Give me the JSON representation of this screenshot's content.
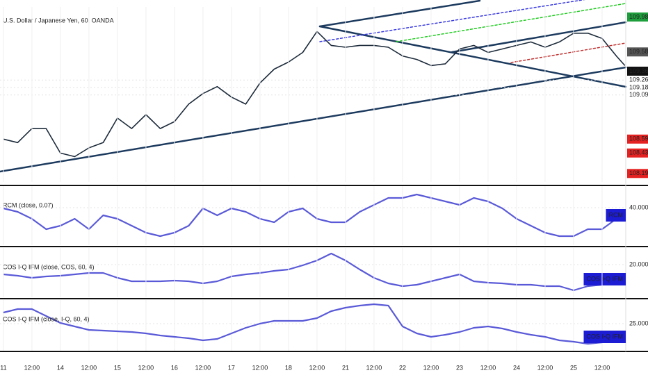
{
  "chart_data": [
    {
      "type": "line",
      "title": "U.S. Dollar / Japanese Yen, 60, OANDA",
      "color": "#1c2a3a",
      "x": [
        0,
        0.5,
        1,
        1.5,
        2,
        2.5,
        3,
        3.5,
        4,
        4.5,
        5,
        5.5,
        6,
        6.5,
        7,
        7.5,
        8,
        8.5,
        9,
        9.5,
        10,
        10.5,
        11,
        11.5,
        12,
        12.5,
        13,
        13.5,
        14,
        14.5,
        15,
        15.5,
        16,
        16.5,
        17,
        17.5,
        18,
        18.5,
        19,
        19.5,
        20,
        20.5,
        21,
        21.5,
        21.8
      ],
      "values": [
        108.59,
        108.55,
        108.71,
        108.71,
        108.43,
        108.39,
        108.49,
        108.55,
        108.83,
        108.71,
        108.87,
        108.71,
        108.79,
        108.99,
        109.11,
        109.19,
        109.07,
        108.99,
        109.23,
        109.39,
        109.47,
        109.58,
        109.82,
        109.66,
        109.64,
        109.66,
        109.66,
        109.64,
        109.54,
        109.5,
        109.43,
        109.45,
        109.62,
        109.66,
        109.58,
        109.62,
        109.66,
        109.7,
        109.64,
        109.7,
        109.8,
        109.8,
        109.74,
        109.54,
        109.43
      ],
      "xlim": [
        -0.12,
        21.83
      ],
      "ylim": [
        108.1,
        110.1
      ],
      "yticks": [
        109.265,
        109.18,
        109.094
      ],
      "price_markers": [
        {
          "value": 109.985,
          "color": "#1e9e3c"
        },
        {
          "value": 109.586,
          "color": "#555555"
        },
        {
          "value": 109.366,
          "color": "#111111"
        },
        {
          "value": 108.59,
          "color": "#e52222"
        },
        {
          "value": 108.431,
          "color": "#e52222"
        },
        {
          "value": 108.197,
          "color": "#e52222"
        }
      ],
      "grid": true
    },
    {
      "type": "line",
      "title": "RCM (close, 0.07)",
      "badge": "RCM",
      "color": "#5a5ad8",
      "x": [
        0,
        0.5,
        1,
        1.5,
        2,
        2.5,
        3,
        3.5,
        4,
        4.5,
        5,
        5.5,
        6,
        6.5,
        7,
        7.5,
        8,
        8.5,
        9,
        9.5,
        10,
        10.5,
        11,
        11.5,
        12,
        12.5,
        13,
        13.5,
        14,
        14.5,
        15,
        15.5,
        16,
        16.5,
        17,
        17.5,
        18,
        18.5,
        19,
        19.5,
        20,
        20.5,
        21,
        21.5,
        21.8
      ],
      "values": [
        39,
        34,
        24,
        9,
        14,
        24,
        9,
        29,
        24,
        14,
        4,
        -1,
        4,
        14,
        39,
        29,
        39,
        34,
        24,
        19,
        34,
        39,
        24,
        19,
        19,
        34,
        44,
        54,
        54,
        59,
        54,
        49,
        44,
        54,
        49,
        39,
        24,
        14,
        4,
        -1,
        -1,
        9,
        9,
        24,
        29
      ],
      "xlim": [
        -0.12,
        21.83
      ],
      "ylim": [
        -14,
        71
      ],
      "yticks": [
        {
          "value": 40,
          "label": "40.0000"
        }
      ]
    },
    {
      "type": "line",
      "title": "COS I-Q IFM (close, COS, 60, 4)",
      "badge": "COS I-Q IFM",
      "color": "#5a5ad8",
      "x": [
        0,
        0.5,
        1,
        1.5,
        2,
        2.5,
        3,
        3.5,
        4,
        4.5,
        5,
        5.5,
        6,
        6.5,
        7,
        7.5,
        8,
        8.5,
        9,
        9.5,
        10,
        10.5,
        11,
        11.5,
        12,
        12.5,
        13,
        13.5,
        14,
        14.5,
        15,
        15.5,
        16,
        16.5,
        17,
        17.5,
        18,
        18.5,
        19,
        19.5,
        20,
        20.5,
        21,
        21.5,
        21.8
      ],
      "values": [
        6,
        4,
        1,
        3,
        4,
        6,
        8,
        8,
        1,
        -4,
        -4,
        -4,
        -3,
        -4,
        -7,
        -4,
        3,
        6,
        8,
        11,
        13,
        19,
        26,
        36,
        26,
        13,
        1,
        -7,
        -11,
        -9,
        -4,
        1,
        6,
        -4,
        -6,
        -7,
        -9,
        -9,
        -11,
        -11,
        -17,
        -11,
        -9,
        -4,
        -1
      ],
      "xlim": [
        -0.12,
        21.83
      ],
      "ylim": [
        -27,
        44
      ],
      "yticks": [
        {
          "value": 20,
          "label": "20.0000"
        }
      ]
    },
    {
      "type": "line",
      "title": "COS I-Q IFM (close, I-Q, 60, 4)",
      "badge": "COS I-Q IFM",
      "color": "#5a5ad8",
      "x": [
        0,
        0.5,
        1,
        1.5,
        2,
        2.5,
        3,
        3.5,
        4,
        4.5,
        5,
        5.5,
        6,
        6.5,
        7,
        7.5,
        8,
        8.5,
        9,
        9.5,
        10,
        10.5,
        11,
        11.5,
        12,
        12.5,
        13,
        13.5,
        14,
        14.5,
        15,
        15.5,
        16,
        16.5,
        17,
        17.5,
        18,
        18.5,
        19,
        19.5,
        20,
        20.5,
        21,
        21.5,
        21.8
      ],
      "values": [
        41,
        46,
        46,
        36,
        26,
        21,
        16,
        15,
        14,
        13,
        11,
        8,
        6,
        4,
        1,
        3,
        11,
        19,
        25,
        29,
        29,
        29,
        33,
        43,
        48,
        51,
        53,
        51,
        21,
        11,
        6,
        9,
        13,
        19,
        21,
        18,
        13,
        9,
        6,
        1,
        -1,
        -4,
        -2,
        3,
        6
      ],
      "xlim": [
        -0.12,
        21.83
      ],
      "ylim": [
        -14,
        59
      ],
      "yticks": [
        {
          "value": 25,
          "label": "25.0000"
        }
      ],
      "xticks": [
        {
          "value": 0,
          "label": "11"
        },
        {
          "value": 1,
          "label": "12:00"
        },
        {
          "value": 2,
          "label": "14"
        },
        {
          "value": 3,
          "label": "12:00"
        },
        {
          "value": 4,
          "label": "15"
        },
        {
          "value": 5,
          "label": "12:00"
        },
        {
          "value": 6,
          "label": "16"
        },
        {
          "value": 7,
          "label": "12:00"
        },
        {
          "value": 8,
          "label": "17"
        },
        {
          "value": 9,
          "label": "12:00"
        },
        {
          "value": 10,
          "label": "18"
        },
        {
          "value": 11,
          "label": "12:00"
        },
        {
          "value": 12,
          "label": "21"
        },
        {
          "value": 13,
          "label": "12:00"
        },
        {
          "value": 14,
          "label": "22"
        },
        {
          "value": 15,
          "label": "12:00"
        },
        {
          "value": 16,
          "label": "23"
        },
        {
          "value": 17,
          "label": "12:00"
        },
        {
          "value": 18,
          "label": "24"
        },
        {
          "value": 19,
          "label": "12:00"
        },
        {
          "value": 20,
          "label": "25"
        },
        {
          "value": 21,
          "label": "12:00"
        }
      ]
    }
  ]
}
